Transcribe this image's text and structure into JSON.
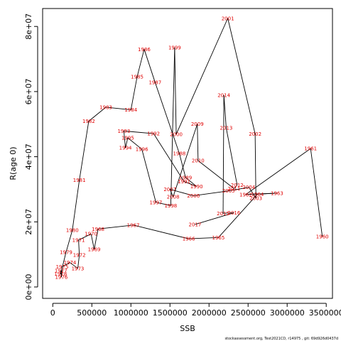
{
  "chart_data": {
    "type": "line",
    "xlabel": "SSB",
    "ylabel": "R(age 0)",
    "xlim": [
      -130000,
      3580000
    ],
    "ylim": [
      -3500000,
      85500000
    ],
    "x_ticks": [
      0,
      500000,
      1000000,
      1500000,
      2000000,
      2500000,
      3000000,
      3500000
    ],
    "x_tick_labels": [
      "0",
      "500000",
      "1000000",
      "1500000",
      "2000000",
      "2500000",
      "3000000",
      "3500000"
    ],
    "y_ticks": [
      0,
      20000000,
      40000000,
      60000000,
      80000000
    ],
    "y_tick_labels": [
      "0e+00",
      "2e+07",
      "4e+07",
      "6e+07",
      "8e+07"
    ],
    "grid": false,
    "line_color": "#000000",
    "label_color": "#e00000",
    "points": [
      {
        "label": "1960",
        "x": 3450000,
        "y": 15500000
      },
      {
        "label": "1961",
        "x": 3300000,
        "y": 42500000
      },
      {
        "label": "1962",
        "x": 2470000,
        "y": 28400000
      },
      {
        "label": "1963",
        "x": 2870000,
        "y": 28800000
      },
      {
        "label": "1964",
        "x": 2620000,
        "y": 28500000
      },
      {
        "label": "1965",
        "x": 2120000,
        "y": 15200000
      },
      {
        "label": "1966",
        "x": 1740000,
        "y": 14800000
      },
      {
        "label": "1967",
        "x": 1030000,
        "y": 19000000
      },
      {
        "label": "1968",
        "x": 580000,
        "y": 17800000
      },
      {
        "label": "1969",
        "x": 530000,
        "y": 11600000
      },
      {
        "label": "1970",
        "x": 490000,
        "y": 16300000
      },
      {
        "label": "1971",
        "x": 330000,
        "y": 14400000
      },
      {
        "label": "1972",
        "x": 340000,
        "y": 9800000
      },
      {
        "label": "1973",
        "x": 320000,
        "y": 5700000
      },
      {
        "label": "1974",
        "x": 220000,
        "y": 7500000
      },
      {
        "label": "1975",
        "x": 120000,
        "y": 6200000
      },
      {
        "label": "1976",
        "x": 110000,
        "y": 3000000
      },
      {
        "label": "1977",
        "x": 105000,
        "y": 5000000
      },
      {
        "label": "1978",
        "x": 100000,
        "y": 4000000
      },
      {
        "label": "1979",
        "x": 170000,
        "y": 10700000
      },
      {
        "label": "1980",
        "x": 250000,
        "y": 17400000
      },
      {
        "label": "1981",
        "x": 340000,
        "y": 32800000
      },
      {
        "label": "1982",
        "x": 460000,
        "y": 50900000
      },
      {
        "label": "1983",
        "x": 680000,
        "y": 55200000
      },
      {
        "label": "1984",
        "x": 1000000,
        "y": 54400000
      },
      {
        "label": "1985",
        "x": 1080000,
        "y": 64600000
      },
      {
        "label": "1986",
        "x": 1170000,
        "y": 73000000
      },
      {
        "label": "1987",
        "x": 1310000,
        "y": 62800000
      },
      {
        "label": "1988",
        "x": 1620000,
        "y": 41000000
      },
      {
        "label": "1989",
        "x": 1700000,
        "y": 33600000
      },
      {
        "label": "1990",
        "x": 1840000,
        "y": 30900000
      },
      {
        "label": "1991",
        "x": 1680000,
        "y": 32400000
      },
      {
        "label": "1992",
        "x": 1290000,
        "y": 47100000
      },
      {
        "label": "1993",
        "x": 910000,
        "y": 47900000
      },
      {
        "label": "1994",
        "x": 930000,
        "y": 42700000
      },
      {
        "label": "1995",
        "x": 960000,
        "y": 45800000
      },
      {
        "label": "1996",
        "x": 1140000,
        "y": 42300000
      },
      {
        "label": "1997",
        "x": 1320000,
        "y": 26000000
      },
      {
        "label": "1998",
        "x": 1510000,
        "y": 25000000
      },
      {
        "label": "1999",
        "x": 1560000,
        "y": 73500000
      },
      {
        "label": "2000",
        "x": 1580000,
        "y": 46900000
      },
      {
        "label": "2001",
        "x": 2240000,
        "y": 82500000
      },
      {
        "label": "2002",
        "x": 2590000,
        "y": 47000000
      },
      {
        "label": "2003",
        "x": 2600000,
        "y": 27300000
      },
      {
        "label": "2004",
        "x": 2510000,
        "y": 30600000
      },
      {
        "label": "2005",
        "x": 2250000,
        "y": 29500000
      },
      {
        "label": "2006",
        "x": 1800000,
        "y": 28000000
      },
      {
        "label": "2007",
        "x": 1500000,
        "y": 30000000
      },
      {
        "label": "2008",
        "x": 1540000,
        "y": 27700000
      },
      {
        "label": "2009",
        "x": 1850000,
        "y": 50000000
      },
      {
        "label": "2010",
        "x": 1860000,
        "y": 38800000
      },
      {
        "label": "2011",
        "x": 2320000,
        "y": 30200000
      },
      {
        "label": "2012",
        "x": 2360000,
        "y": 31300000
      },
      {
        "label": "2013",
        "x": 2220000,
        "y": 48800000
      },
      {
        "label": "2014",
        "x": 2190000,
        "y": 58900000
      },
      {
        "label": "2015",
        "x": 2180000,
        "y": 22600000
      },
      {
        "label": "2016",
        "x": 2320000,
        "y": 22800000
      },
      {
        "label": "2017",
        "x": 1820000,
        "y": 19200000
      }
    ]
  },
  "footer": {
    "credit": "stockassessment.org, Test2021CD, r14975 , git: 69d926d0437d"
  }
}
